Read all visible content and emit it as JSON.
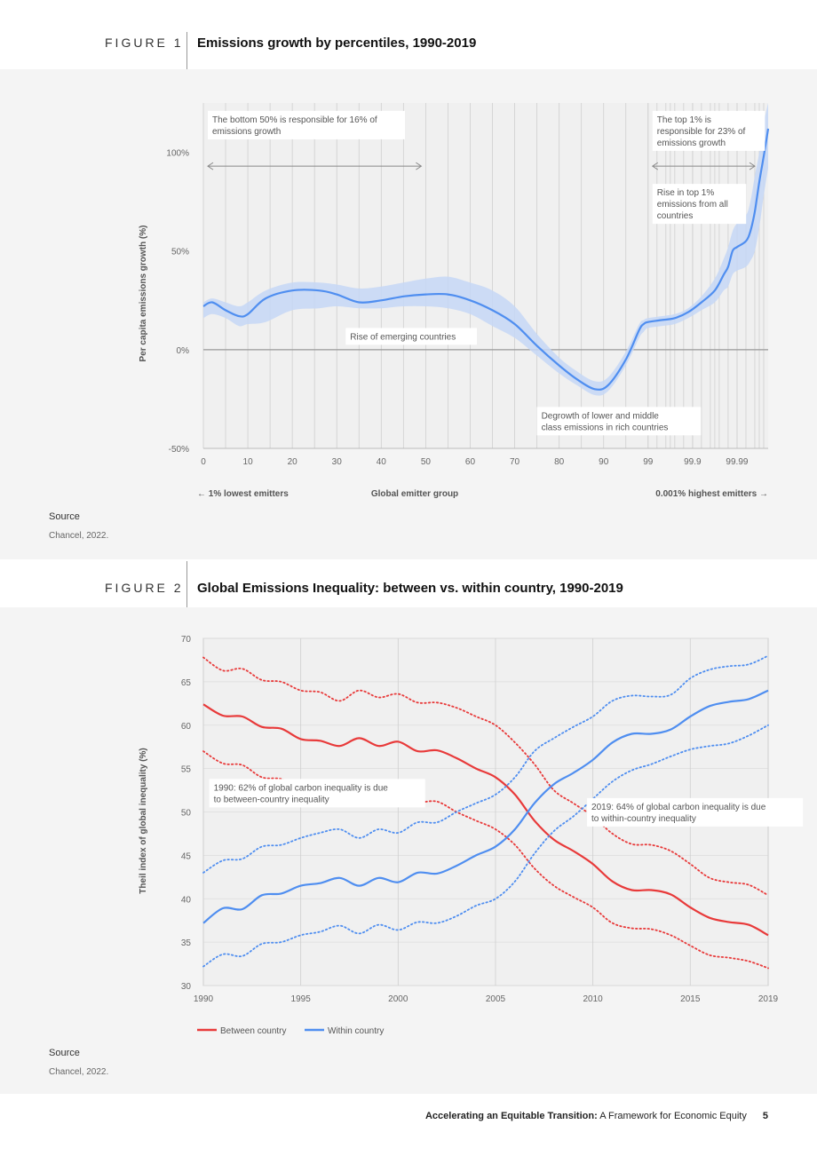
{
  "figure1": {
    "label": "FIGURE 1",
    "title": "Emissions growth by percentiles, 1990-2019",
    "source_label": "Source",
    "source_text": "Chancel, 2022."
  },
  "figure2": {
    "label": "FIGURE 2",
    "title": "Global Emissions Inequality: between vs. within country, 1990-2019",
    "source_label": "Source",
    "source_text": "Chancel, 2022."
  },
  "footer": {
    "bold": "Accelerating an Equitable Transition:",
    "rest": " A Framework for Economic Equity",
    "page": "5"
  },
  "colors": {
    "panel_bg": "#f4f4f4",
    "plot_bg": "#f0f0f0",
    "line_blue": "#4f8ef0",
    "band_blue": "#c6d7f6",
    "line_red": "#e83a3a",
    "grid": "#cfcfcf"
  },
  "chart_data": [
    {
      "type": "line",
      "ylabel": "Per capita emissions growth (%)",
      "xlabel": "Global emitter group",
      "x_left_note": "← 1% lowest emitters",
      "x_right_note": "0.001% highest emitters →",
      "ylim": [
        -50,
        125
      ],
      "yticks": [
        {
          "v": 100,
          "label": "100%"
        },
        {
          "v": 50,
          "label": "50%"
        },
        {
          "v": 0,
          "label": "0%"
        },
        {
          "v": -50,
          "label": "-50%"
        }
      ],
      "xticks": [
        "0",
        "10",
        "20",
        "30",
        "40",
        "50",
        "60",
        "70",
        "80",
        "90",
        "99",
        "99.9",
        "99.99"
      ],
      "x_domain": [
        0,
        127
      ],
      "series": [
        {
          "x": [
            0,
            2,
            5,
            8,
            10,
            14,
            20,
            26,
            30,
            35,
            40,
            45,
            50,
            55,
            60,
            65,
            70,
            75,
            80,
            84,
            88,
            91,
            95,
            98,
            99,
            100,
            103,
            106,
            109,
            112,
            115,
            117,
            118,
            119,
            120,
            122,
            123,
            124,
            125,
            126,
            127
          ],
          "y": [
            22,
            24,
            20,
            17,
            18,
            26,
            30,
            30,
            28,
            24,
            25,
            27,
            28,
            28,
            25,
            20,
            13,
            2,
            -8,
            -15,
            -20,
            -18,
            -5,
            10,
            13,
            14,
            15,
            16,
            19,
            24,
            30,
            38,
            42,
            50,
            52,
            55,
            60,
            70,
            85,
            98,
            112
          ]
        }
      ],
      "band_upper": [
        24,
        26,
        24,
        22,
        24,
        30,
        34,
        34,
        33,
        31,
        32,
        34,
        36,
        37,
        34,
        30,
        22,
        8,
        -4,
        -11,
        -16,
        -14,
        -1,
        13,
        15,
        16,
        17,
        18,
        21,
        27,
        36,
        46,
        52,
        60,
        64,
        68,
        75,
        88,
        100,
        115,
        125
      ],
      "band_lower": [
        16,
        18,
        16,
        12,
        13,
        14,
        20,
        21,
        22,
        21,
        21,
        22,
        22,
        21,
        18,
        12,
        6,
        -3,
        -12,
        -18,
        -23,
        -21,
        -8,
        6,
        9,
        11,
        12,
        13,
        16,
        20,
        24,
        30,
        32,
        38,
        40,
        42,
        45,
        50,
        62,
        78,
        92
      ],
      "annotations": [
        {
          "text": [
            "The bottom 50% is responsible for 16% of",
            "emissions growth"
          ],
          "x": 1,
          "y": 121
        },
        {
          "text": [
            "The top 1% is",
            "responsible for 23% of",
            "emissions growth"
          ],
          "x": 101,
          "y": 121
        },
        {
          "text": [
            "Rise in top 1%",
            "emissions from all",
            "countries"
          ],
          "x": 101,
          "y": 84
        },
        {
          "text": [
            "Rise of emerging countries"
          ],
          "x": 32,
          "y": 11
        },
        {
          "text": [
            "Degrowth of lower and middle",
            "class emissions in rich countries"
          ],
          "x": 75,
          "y": -29
        }
      ],
      "arrows": [
        {
          "x1": 1,
          "x2": 49,
          "y": 93
        },
        {
          "x1": 101,
          "x2": 124,
          "y": 93
        }
      ]
    },
    {
      "type": "line",
      "ylabel": "Theil index of global inequality (%)",
      "xlim": [
        1990,
        2019
      ],
      "ylim": [
        30,
        70
      ],
      "xticks": [
        1990,
        1995,
        2000,
        2005,
        2010,
        2015,
        2019
      ],
      "yticks": [
        30,
        35,
        40,
        45,
        50,
        55,
        60,
        65,
        70
      ],
      "x": [
        1990,
        1991,
        1992,
        1993,
        1994,
        1995,
        1996,
        1997,
        1998,
        1999,
        2000,
        2001,
        2002,
        2003,
        2004,
        2005,
        2006,
        2007,
        2008,
        2009,
        2010,
        2011,
        2012,
        2013,
        2014,
        2015,
        2016,
        2017,
        2018,
        2019
      ],
      "series": [
        {
          "name": "Between country",
          "values": [
            62.4,
            61.1,
            61.0,
            59.8,
            59.6,
            58.4,
            58.2,
            57.6,
            58.5,
            57.6,
            58.1,
            57.0,
            57.1,
            56.2,
            55.0,
            54.0,
            52.0,
            49.0,
            46.8,
            45.5,
            44.0,
            42.0,
            41.0,
            41.0,
            40.5,
            39.0,
            37.8,
            37.3,
            37.0,
            35.8
          ],
          "upper": [
            67.8,
            66.3,
            66.5,
            65.2,
            65.0,
            64.0,
            63.8,
            62.8,
            64.0,
            63.2,
            63.6,
            62.6,
            62.6,
            62.0,
            61.0,
            60.0,
            58.0,
            55.5,
            52.5,
            51.0,
            49.5,
            47.5,
            46.3,
            46.2,
            45.5,
            44.0,
            42.4,
            41.9,
            41.6,
            40.4
          ],
          "lower": [
            57.0,
            55.6,
            55.4,
            54.0,
            53.8,
            52.8,
            52.4,
            52.0,
            53.0,
            52.0,
            52.4,
            51.2,
            51.2,
            50.0,
            49.0,
            48.0,
            46.2,
            43.5,
            41.5,
            40.2,
            39.0,
            37.2,
            36.6,
            36.5,
            35.8,
            34.6,
            33.5,
            33.2,
            32.8,
            32.0
          ]
        },
        {
          "name": "Within country",
          "values": [
            37.2,
            38.9,
            38.8,
            40.4,
            40.6,
            41.5,
            41.8,
            42.4,
            41.5,
            42.4,
            41.9,
            43.0,
            42.9,
            43.8,
            45.0,
            46.0,
            48.0,
            51.0,
            53.2,
            54.5,
            56.0,
            58.0,
            59.0,
            59.0,
            59.5,
            61.0,
            62.2,
            62.7,
            63.0,
            64.0
          ],
          "upper": [
            43.0,
            44.4,
            44.6,
            46.0,
            46.2,
            47.0,
            47.6,
            48.0,
            47.0,
            48.0,
            47.6,
            48.8,
            48.8,
            50.0,
            51.0,
            52.0,
            54.0,
            57.0,
            58.5,
            59.8,
            61.0,
            62.8,
            63.4,
            63.3,
            63.5,
            65.4,
            66.4,
            66.8,
            67.0,
            68.0
          ],
          "lower": [
            32.2,
            33.6,
            33.4,
            34.8,
            35.0,
            35.8,
            36.2,
            36.9,
            36.0,
            37.0,
            36.4,
            37.3,
            37.2,
            38.0,
            39.2,
            40.0,
            42.0,
            45.2,
            47.8,
            49.5,
            51.5,
            53.5,
            54.8,
            55.5,
            56.4,
            57.2,
            57.6,
            57.9,
            58.8,
            60.0
          ]
        }
      ],
      "annotations": [
        {
          "text": [
            "1990: 62% of global carbon inequality is due",
            "to between-country inequality"
          ],
          "x": 1990.3,
          "y": 53.8
        },
        {
          "text": [
            "2019: 64% of global carbon inequality is due",
            "to within-country inequality"
          ],
          "x": 2009.7,
          "y": 51.6
        }
      ],
      "legend": "bottom-left"
    }
  ]
}
